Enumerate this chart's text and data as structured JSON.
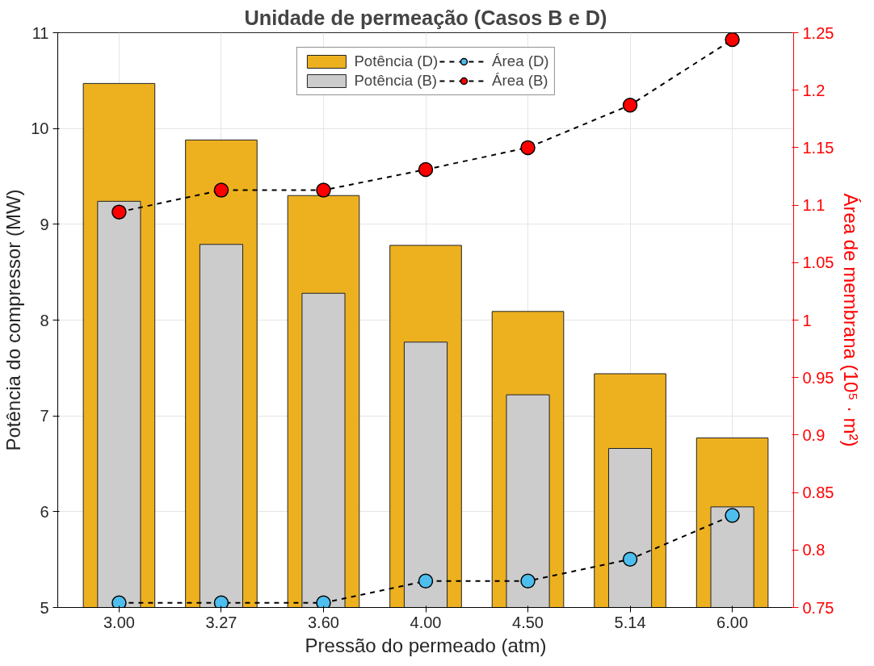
{
  "chart_data": {
    "type": "bar",
    "title": "Unidade de permeação (Casos B e D)",
    "xlabel": "Pressão do permeado (atm)",
    "ylabel": "Potência do compressor (MW)",
    "y2label": "Área de membrana (10⁵ · m²)",
    "categories": [
      "3.00",
      "3.27",
      "3.60",
      "4.00",
      "4.50",
      "5.14",
      "6.00"
    ],
    "ylim": [
      5,
      11
    ],
    "yticks": [
      5,
      6,
      7,
      8,
      9,
      10,
      11
    ],
    "y2lim": [
      0.75,
      1.25
    ],
    "y2ticks": [
      0.75,
      0.8,
      0.85,
      0.9,
      0.95,
      1,
      1.05,
      1.1,
      1.15,
      1.2,
      1.25
    ],
    "grid": true,
    "legend": "top",
    "marker": "circle",
    "line_style": "dashed",
    "series": [
      {
        "name": "Potência (D)",
        "color": "#edb120",
        "values": [
          10.47,
          9.88,
          9.3,
          8.78,
          8.09,
          7.44,
          6.77
        ]
      },
      {
        "name": "Área (D)",
        "type": "line",
        "axis": "y2",
        "color": "#4dbeee",
        "values": [
          0.754,
          0.754,
          0.754,
          0.773,
          0.773,
          0.792,
          0.83
        ]
      },
      {
        "name": "Potência (B)",
        "color": "#cccccc",
        "values": [
          9.24,
          8.79,
          8.28,
          7.77,
          7.22,
          6.66,
          6.05
        ]
      },
      {
        "name": "Área (B)",
        "type": "line",
        "axis": "y2",
        "color": "#ff0000",
        "values": [
          1.094,
          1.113,
          1.113,
          1.131,
          1.15,
          1.187,
          1.244
        ]
      }
    ]
  }
}
